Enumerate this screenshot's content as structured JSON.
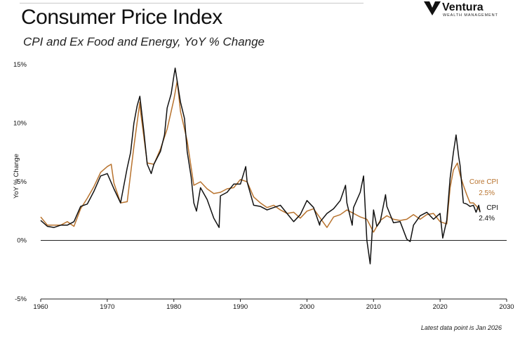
{
  "header": {
    "title": "Consumer Price Index",
    "subtitle": "CPI and Ex Food and Energy, YoY % Change",
    "logo_name": "Ventura",
    "logo_tagline": "WEALTH MANAGEMENT"
  },
  "footnote": "Latest data point is Jan 2026",
  "colors": {
    "cpi": "#111111",
    "core": "#b8732e",
    "axis": "#222222"
  },
  "chart_data": {
    "type": "line",
    "title": "Consumer Price Index",
    "subtitle": "CPI and Ex Food and Energy, YoY % Change",
    "xlabel": "",
    "ylabel": "YoY % Change",
    "xlim": [
      1960,
      2030
    ],
    "ylim": [
      -5,
      15
    ],
    "x_ticks": [
      "1960",
      "1970",
      "1980",
      "1990",
      "2000",
      "2010",
      "2020",
      "2030"
    ],
    "y_ticks": [
      "15%",
      "10%",
      "5%",
      "0%",
      "-5%"
    ],
    "series": [
      {
        "name": "CPI",
        "label_name": "CPI",
        "label_value": "2.4%",
        "color": "#111111",
        "points": [
          [
            1960.0,
            1.7
          ],
          [
            1961.0,
            1.2
          ],
          [
            1962.0,
            1.1
          ],
          [
            1963.0,
            1.3
          ],
          [
            1964.0,
            1.3
          ],
          [
            1965.0,
            1.6
          ],
          [
            1966.0,
            2.9
          ],
          [
            1967.0,
            3.1
          ],
          [
            1968.0,
            4.2
          ],
          [
            1969.0,
            5.5
          ],
          [
            1970.0,
            5.7
          ],
          [
            1971.0,
            4.4
          ],
          [
            1972.0,
            3.2
          ],
          [
            1973.0,
            6.2
          ],
          [
            1973.5,
            7.5
          ],
          [
            1974.0,
            10.0
          ],
          [
            1974.5,
            11.5
          ],
          [
            1974.9,
            12.3
          ],
          [
            1975.5,
            9.3
          ],
          [
            1976.0,
            6.5
          ],
          [
            1976.6,
            5.7
          ],
          [
            1977.0,
            6.5
          ],
          [
            1978.0,
            7.6
          ],
          [
            1978.6,
            9.0
          ],
          [
            1979.0,
            11.3
          ],
          [
            1979.6,
            12.5
          ],
          [
            1980.0,
            14.0
          ],
          [
            1980.2,
            14.7
          ],
          [
            1980.8,
            12.5
          ],
          [
            1981.0,
            11.8
          ],
          [
            1981.6,
            10.4
          ],
          [
            1982.0,
            7.6
          ],
          [
            1982.6,
            5.4
          ],
          [
            1983.0,
            3.2
          ],
          [
            1983.4,
            2.5
          ],
          [
            1984.0,
            4.5
          ],
          [
            1985.0,
            3.5
          ],
          [
            1986.0,
            1.9
          ],
          [
            1986.8,
            1.1
          ],
          [
            1987.0,
            3.8
          ],
          [
            1988.0,
            4.1
          ],
          [
            1989.0,
            4.8
          ],
          [
            1990.0,
            4.8
          ],
          [
            1990.8,
            6.3
          ],
          [
            1991.0,
            5.0
          ],
          [
            1992.0,
            3.0
          ],
          [
            1993.0,
            2.9
          ],
          [
            1994.0,
            2.6
          ],
          [
            1995.0,
            2.8
          ],
          [
            1996.0,
            3.0
          ],
          [
            1997.0,
            2.3
          ],
          [
            1998.0,
            1.6
          ],
          [
            1999.0,
            2.2
          ],
          [
            2000.0,
            3.4
          ],
          [
            2001.0,
            2.8
          ],
          [
            2001.9,
            1.3
          ],
          [
            2002.0,
            1.6
          ],
          [
            2003.0,
            2.3
          ],
          [
            2004.0,
            2.7
          ],
          [
            2005.0,
            3.4
          ],
          [
            2005.8,
            4.7
          ],
          [
            2006.0,
            3.2
          ],
          [
            2006.8,
            1.3
          ],
          [
            2007.0,
            2.8
          ],
          [
            2008.0,
            4.1
          ],
          [
            2008.5,
            5.5
          ],
          [
            2008.9,
            1.0
          ],
          [
            2009.0,
            0.0
          ],
          [
            2009.5,
            -2.0
          ],
          [
            2010.0,
            2.6
          ],
          [
            2010.5,
            1.2
          ],
          [
            2011.0,
            1.6
          ],
          [
            2011.8,
            3.9
          ],
          [
            2012.0,
            2.9
          ],
          [
            2013.0,
            1.5
          ],
          [
            2014.0,
            1.6
          ],
          [
            2015.0,
            0.1
          ],
          [
            2015.5,
            -0.1
          ],
          [
            2016.0,
            1.3
          ],
          [
            2017.0,
            2.1
          ],
          [
            2018.0,
            2.4
          ],
          [
            2019.0,
            1.8
          ],
          [
            2020.0,
            2.3
          ],
          [
            2020.4,
            0.2
          ],
          [
            2021.0,
            1.7
          ],
          [
            2021.5,
            5.3
          ],
          [
            2022.0,
            7.5
          ],
          [
            2022.4,
            9.0
          ],
          [
            2022.8,
            7.1
          ],
          [
            2023.0,
            6.4
          ],
          [
            2023.5,
            3.2
          ],
          [
            2024.0,
            3.1
          ],
          [
            2024.5,
            2.9
          ],
          [
            2025.0,
            3.0
          ],
          [
            2025.4,
            2.4
          ],
          [
            2025.8,
            3.0
          ],
          [
            2026.0,
            2.4
          ]
        ]
      },
      {
        "name": "Core CPI",
        "label_name": "Core CPI",
        "label_value": "2.5%",
        "color": "#b8732e",
        "points": [
          [
            1960.0,
            2.0
          ],
          [
            1961.0,
            1.3
          ],
          [
            1962.0,
            1.3
          ],
          [
            1963.0,
            1.3
          ],
          [
            1964.0,
            1.6
          ],
          [
            1965.0,
            1.2
          ],
          [
            1966.0,
            2.7
          ],
          [
            1967.0,
            3.6
          ],
          [
            1968.0,
            4.6
          ],
          [
            1969.0,
            5.8
          ],
          [
            1970.0,
            6.3
          ],
          [
            1970.6,
            6.5
          ],
          [
            1971.0,
            4.9
          ],
          [
            1972.0,
            3.2
          ],
          [
            1973.0,
            3.3
          ],
          [
            1974.0,
            8.0
          ],
          [
            1974.9,
            11.8
          ],
          [
            1975.0,
            11.0
          ],
          [
            1976.0,
            6.6
          ],
          [
            1977.0,
            6.5
          ],
          [
            1978.0,
            7.8
          ],
          [
            1979.0,
            9.5
          ],
          [
            1980.0,
            12.0
          ],
          [
            1980.5,
            13.6
          ],
          [
            1981.0,
            11.0
          ],
          [
            1982.0,
            8.5
          ],
          [
            1983.0,
            4.7
          ],
          [
            1984.0,
            5.0
          ],
          [
            1985.0,
            4.4
          ],
          [
            1986.0,
            4.0
          ],
          [
            1987.0,
            4.1
          ],
          [
            1988.0,
            4.4
          ],
          [
            1989.0,
            4.5
          ],
          [
            1990.0,
            5.2
          ],
          [
            1991.0,
            5.0
          ],
          [
            1992.0,
            3.7
          ],
          [
            1993.0,
            3.2
          ],
          [
            1994.0,
            2.8
          ],
          [
            1995.0,
            3.0
          ],
          [
            1996.0,
            2.6
          ],
          [
            1997.0,
            2.3
          ],
          [
            1998.0,
            2.4
          ],
          [
            1999.0,
            1.9
          ],
          [
            2000.0,
            2.5
          ],
          [
            2001.0,
            2.7
          ],
          [
            2002.0,
            1.9
          ],
          [
            2003.0,
            1.1
          ],
          [
            2004.0,
            2.0
          ],
          [
            2005.0,
            2.2
          ],
          [
            2006.0,
            2.6
          ],
          [
            2007.0,
            2.3
          ],
          [
            2008.0,
            2.0
          ],
          [
            2009.0,
            1.8
          ],
          [
            2010.0,
            0.7
          ],
          [
            2011.0,
            1.7
          ],
          [
            2012.0,
            2.1
          ],
          [
            2013.0,
            1.8
          ],
          [
            2014.0,
            1.7
          ],
          [
            2015.0,
            1.8
          ],
          [
            2016.0,
            2.2
          ],
          [
            2017.0,
            1.8
          ],
          [
            2018.0,
            2.2
          ],
          [
            2019.0,
            2.3
          ],
          [
            2020.0,
            1.6
          ],
          [
            2021.0,
            1.4
          ],
          [
            2021.5,
            4.5
          ],
          [
            2022.0,
            6.0
          ],
          [
            2022.6,
            6.6
          ],
          [
            2023.0,
            5.6
          ],
          [
            2023.5,
            4.7
          ],
          [
            2024.0,
            3.9
          ],
          [
            2024.5,
            3.2
          ],
          [
            2025.0,
            3.2
          ],
          [
            2025.5,
            2.9
          ],
          [
            2026.0,
            2.5
          ]
        ]
      }
    ]
  }
}
